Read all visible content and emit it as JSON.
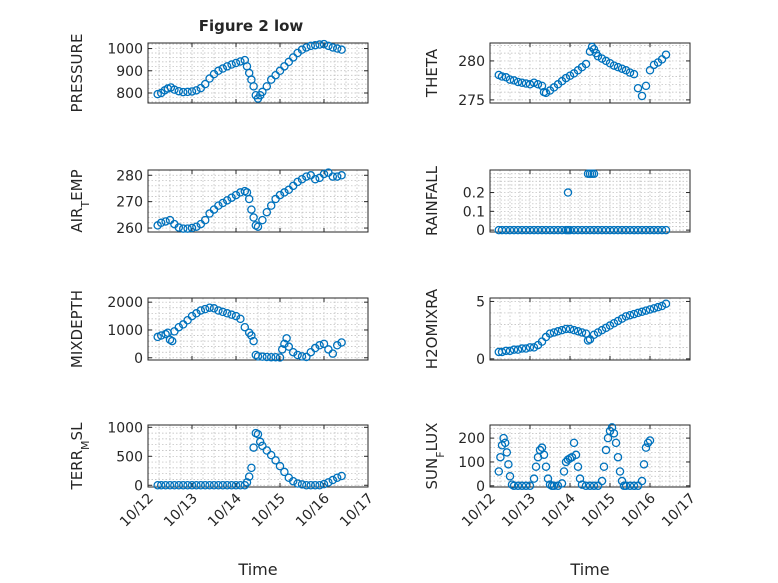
{
  "figure": {
    "title": "Figure 2 low"
  },
  "style": {
    "marker_color": "#0072BD",
    "axes_color": "#262626",
    "grid_color": "#b8b8b8"
  },
  "chart_data": [
    {
      "type": "scatter",
      "position": "row1-left",
      "title": "Figure 2 low",
      "ylabel": {
        "text": "PRESSURE"
      },
      "xlabel": "",
      "x_range": [
        12,
        17
      ],
      "x_ticks": [
        "10/12",
        "10/13",
        "10/14",
        "10/15",
        "10/16",
        "10/17"
      ],
      "show_x_ticks": false,
      "ylim": [
        755,
        1025
      ],
      "y_ticks": [
        800,
        900,
        1000
      ],
      "y_tick_labels": [
        "800",
        "900",
        "1000"
      ],
      "grid": true,
      "series": [
        {
          "x": [
            12.22,
            12.3,
            12.38,
            12.45,
            12.52,
            12.6,
            12.7,
            12.8,
            12.9,
            13.0,
            13.1,
            13.2,
            13.3,
            13.4,
            13.5,
            13.6,
            13.7,
            13.8,
            13.9,
            14.0,
            14.1,
            14.2,
            14.25,
            14.3,
            14.35,
            14.4,
            14.45,
            14.5,
            14.55,
            14.6,
            14.7,
            14.8,
            14.9,
            15.0,
            15.1,
            15.2,
            15.3,
            15.4,
            15.5,
            15.6,
            15.7,
            15.8,
            15.9,
            16.0,
            16.1,
            16.2,
            16.3,
            16.4
          ],
          "y": [
            795,
            800,
            812,
            820,
            825,
            815,
            808,
            804,
            805,
            807,
            812,
            822,
            840,
            865,
            885,
            900,
            910,
            920,
            928,
            935,
            942,
            948,
            920,
            890,
            860,
            830,
            790,
            775,
            790,
            805,
            830,
            860,
            880,
            900,
            920,
            940,
            960,
            980,
            995,
            1005,
            1012,
            1015,
            1018,
            1020,
            1012,
            1005,
            1000,
            995
          ]
        }
      ]
    },
    {
      "type": "scatter",
      "position": "row1-right",
      "ylabel": {
        "text": "THETA"
      },
      "xlabel": "",
      "x_range": [
        12,
        17
      ],
      "x_ticks": [
        "10/12",
        "10/13",
        "10/14",
        "10/15",
        "10/16",
        "10/17"
      ],
      "show_x_ticks": false,
      "ylim": [
        274.6,
        282.3
      ],
      "y_ticks": [
        275,
        280
      ],
      "y_tick_labels": [
        "275",
        "280"
      ],
      "grid": true,
      "series": [
        {
          "x": [
            12.22,
            12.3,
            12.4,
            12.5,
            12.6,
            12.7,
            12.8,
            12.9,
            13.0,
            13.1,
            13.2,
            13.3,
            13.35,
            13.4,
            13.5,
            13.6,
            13.7,
            13.8,
            13.9,
            14.0,
            14.1,
            14.2,
            14.3,
            14.4,
            14.5,
            14.55,
            14.6,
            14.65,
            14.7,
            14.8,
            14.9,
            15.0,
            15.1,
            15.2,
            15.3,
            15.4,
            15.5,
            15.6,
            15.7,
            15.8,
            15.9,
            16.0,
            16.1,
            16.2,
            16.3,
            16.4
          ],
          "y": [
            278.2,
            278.0,
            277.9,
            277.6,
            277.5,
            277.3,
            277.2,
            277.1,
            277.0,
            277.2,
            277.0,
            276.8,
            276.0,
            275.9,
            276.2,
            276.6,
            277.0,
            277.4,
            277.8,
            278.1,
            278.4,
            278.8,
            279.2,
            279.6,
            281.2,
            281.8,
            281.5,
            281.0,
            280.6,
            280.3,
            280.0,
            279.7,
            279.4,
            279.2,
            279.0,
            278.8,
            278.5,
            278.3,
            276.5,
            275.5,
            276.8,
            278.8,
            279.5,
            279.8,
            280.2,
            280.8
          ]
        }
      ]
    },
    {
      "type": "scatter",
      "position": "row2-left",
      "ylabel": {
        "text": "AIR",
        "sub": "T",
        "rest": "EMP"
      },
      "xlabel": "",
      "x_range": [
        12,
        17
      ],
      "x_ticks": [
        "10/12",
        "10/13",
        "10/14",
        "10/15",
        "10/16",
        "10/17"
      ],
      "show_x_ticks": false,
      "ylim": [
        258.5,
        282
      ],
      "y_ticks": [
        260,
        270,
        280
      ],
      "y_tick_labels": [
        "260",
        "270",
        "280"
      ],
      "grid": true,
      "series": [
        {
          "x": [
            12.22,
            12.3,
            12.4,
            12.5,
            12.6,
            12.7,
            12.8,
            12.9,
            13.0,
            13.1,
            13.2,
            13.3,
            13.4,
            13.5,
            13.6,
            13.7,
            13.8,
            13.9,
            14.0,
            14.1,
            14.2,
            14.25,
            14.3,
            14.35,
            14.4,
            14.45,
            14.5,
            14.6,
            14.7,
            14.8,
            14.9,
            15.0,
            15.1,
            15.2,
            15.3,
            15.4,
            15.5,
            15.6,
            15.7,
            15.8,
            15.9,
            16.0,
            16.1,
            16.2,
            16.3,
            16.4
          ],
          "y": [
            261,
            262,
            262.5,
            263,
            261.5,
            260.2,
            259.8,
            259.8,
            260,
            260.5,
            261.5,
            263,
            265.5,
            267,
            268.5,
            269.5,
            270.5,
            271.5,
            272.5,
            273.5,
            274,
            273.5,
            271,
            267,
            264,
            261,
            260.5,
            263,
            266,
            268.5,
            271,
            272.5,
            273.5,
            274.5,
            276,
            277.5,
            278.5,
            279.5,
            280,
            278.5,
            279,
            280.5,
            281,
            279.5,
            279.5,
            280
          ]
        }
      ]
    },
    {
      "type": "scatter",
      "position": "row2-right",
      "ylabel": {
        "text": "RAINFALL"
      },
      "xlabel": "",
      "x_range": [
        12,
        17
      ],
      "x_ticks": [
        "10/12",
        "10/13",
        "10/14",
        "10/15",
        "10/16",
        "10/17"
      ],
      "show_x_ticks": false,
      "ylim": [
        -0.01,
        0.32
      ],
      "y_ticks": [
        0,
        0.1,
        0.2
      ],
      "y_tick_labels": [
        "0",
        "0.1",
        "0.2"
      ],
      "grid": true,
      "series": [
        {
          "x": [
            12.22,
            12.3,
            12.4,
            12.5,
            12.6,
            12.7,
            12.8,
            12.9,
            13.0,
            13.1,
            13.2,
            13.3,
            13.4,
            13.5,
            13.6,
            13.7,
            13.8,
            13.9,
            13.95,
            14.0,
            14.1,
            14.2,
            14.3,
            14.4,
            14.5,
            14.6,
            14.7,
            14.8,
            14.9,
            15.0,
            15.1,
            15.2,
            15.3,
            15.4,
            15.5,
            15.6,
            15.7,
            15.8,
            15.9,
            16.0,
            16.1,
            16.2,
            16.3,
            16.4,
            14.45,
            14.5,
            14.55,
            14.6,
            13.95
          ],
          "y": [
            0,
            0,
            0,
            0,
            0,
            0,
            0,
            0,
            0,
            0,
            0,
            0,
            0,
            0,
            0,
            0,
            0,
            0,
            0,
            0,
            0,
            0,
            0,
            0,
            0,
            0,
            0,
            0,
            0,
            0,
            0,
            0,
            0,
            0,
            0,
            0,
            0,
            0,
            0,
            0,
            0,
            0,
            0,
            0,
            0.3,
            0.3,
            0.3,
            0.3,
            0.2
          ]
        }
      ]
    },
    {
      "type": "scatter",
      "position": "row3-left",
      "ylabel": {
        "text": "MIXDEPTH"
      },
      "xlabel": "",
      "x_range": [
        12,
        17
      ],
      "x_ticks": [
        "10/12",
        "10/13",
        "10/14",
        "10/15",
        "10/16",
        "10/17"
      ],
      "show_x_ticks": false,
      "ylim": [
        -80,
        2150
      ],
      "y_ticks": [
        0,
        1000,
        2000
      ],
      "y_tick_labels": [
        "0",
        "1000",
        "2000"
      ],
      "grid": true,
      "series": [
        {
          "x": [
            12.22,
            12.3,
            12.4,
            12.45,
            12.5,
            12.55,
            12.6,
            12.7,
            12.8,
            12.9,
            13.0,
            13.1,
            13.2,
            13.3,
            13.4,
            13.5,
            13.6,
            13.7,
            13.8,
            13.9,
            14.0,
            14.1,
            14.2,
            14.3,
            14.35,
            14.4,
            14.45,
            14.5,
            14.6,
            14.7,
            14.8,
            14.9,
            15.0,
            15.05,
            15.1,
            15.15,
            15.2,
            15.3,
            15.4,
            15.5,
            15.6,
            15.7,
            15.8,
            15.9,
            16.0,
            16.1,
            16.2,
            16.3,
            16.4
          ],
          "y": [
            750,
            800,
            850,
            900,
            650,
            600,
            950,
            1100,
            1200,
            1350,
            1500,
            1600,
            1700,
            1750,
            1800,
            1780,
            1700,
            1650,
            1600,
            1550,
            1500,
            1400,
            1100,
            900,
            800,
            600,
            100,
            50,
            40,
            30,
            20,
            20,
            10,
            300,
            500,
            700,
            400,
            200,
            100,
            50,
            30,
            200,
            350,
            450,
            500,
            300,
            150,
            450,
            550
          ]
        }
      ]
    },
    {
      "type": "scatter",
      "position": "row3-right",
      "ylabel": {
        "text": "H2OMIXRA"
      },
      "xlabel": "",
      "x_range": [
        12,
        17
      ],
      "x_ticks": [
        "10/12",
        "10/13",
        "10/14",
        "10/15",
        "10/16",
        "10/17"
      ],
      "show_x_ticks": false,
      "ylim": [
        -0.1,
        5.3
      ],
      "y_ticks": [
        0,
        5
      ],
      "y_tick_labels": [
        "0",
        "5"
      ],
      "grid": true,
      "series": [
        {
          "x": [
            12.22,
            12.3,
            12.4,
            12.5,
            12.6,
            12.7,
            12.8,
            12.9,
            13.0,
            13.1,
            13.2,
            13.3,
            13.4,
            13.5,
            13.6,
            13.7,
            13.8,
            13.9,
            14.0,
            14.1,
            14.2,
            14.3,
            14.4,
            14.45,
            14.5,
            14.6,
            14.7,
            14.8,
            14.9,
            15.0,
            15.1,
            15.2,
            15.3,
            15.4,
            15.5,
            15.6,
            15.7,
            15.8,
            15.9,
            16.0,
            16.1,
            16.2,
            16.3,
            16.4
          ],
          "y": [
            0.6,
            0.6,
            0.7,
            0.7,
            0.8,
            0.8,
            0.9,
            0.9,
            1.0,
            1.0,
            1.2,
            1.5,
            1.9,
            2.2,
            2.3,
            2.4,
            2.5,
            2.6,
            2.6,
            2.5,
            2.4,
            2.3,
            2.2,
            1.6,
            1.7,
            2.1,
            2.3,
            2.5,
            2.7,
            2.9,
            3.1,
            3.3,
            3.5,
            3.7,
            3.8,
            3.9,
            4.0,
            4.1,
            4.2,
            4.3,
            4.4,
            4.5,
            4.6,
            4.8
          ]
        }
      ]
    },
    {
      "type": "scatter",
      "position": "row4-left",
      "ylabel": {
        "text": "TERR",
        "sub": "M",
        "rest": "SL"
      },
      "xlabel": "Time",
      "x_range": [
        12,
        17
      ],
      "x_ticks": [
        "10/12",
        "10/13",
        "10/14",
        "10/15",
        "10/16",
        "10/17"
      ],
      "show_x_ticks": true,
      "ylim": [
        -30,
        1040
      ],
      "y_ticks": [
        0,
        500,
        1000
      ],
      "y_tick_labels": [
        "0",
        "500",
        "1000"
      ],
      "grid": true,
      "series": [
        {
          "x": [
            12.22,
            12.3,
            12.4,
            12.5,
            12.6,
            12.7,
            12.8,
            12.9,
            13.0,
            13.1,
            13.2,
            13.3,
            13.4,
            13.5,
            13.6,
            13.7,
            13.8,
            13.9,
            14.0,
            14.1,
            14.2,
            14.25,
            14.3,
            14.35,
            14.4,
            14.45,
            14.5,
            14.55,
            14.6,
            14.7,
            14.8,
            14.9,
            15.0,
            15.1,
            15.2,
            15.3,
            15.4,
            15.5,
            15.6,
            15.7,
            15.8,
            15.9,
            16.0,
            16.1,
            16.2,
            16.3,
            16.4
          ],
          "y": [
            0,
            0,
            0,
            0,
            0,
            0,
            0,
            0,
            0,
            0,
            0,
            0,
            0,
            0,
            0,
            0,
            0,
            0,
            0,
            0,
            0,
            50,
            150,
            300,
            650,
            900,
            880,
            750,
            680,
            600,
            520,
            430,
            330,
            230,
            130,
            70,
            30,
            15,
            0,
            0,
            0,
            0,
            20,
            50,
            90,
            130,
            160
          ]
        }
      ]
    },
    {
      "type": "scatter",
      "position": "row4-right",
      "ylabel": {
        "text": "SUN",
        "sub": "F",
        "rest": "LUX"
      },
      "xlabel": "Time",
      "x_range": [
        12,
        17
      ],
      "x_ticks": [
        "10/12",
        "10/13",
        "10/14",
        "10/15",
        "10/16",
        "10/17"
      ],
      "show_x_ticks": true,
      "ylim": [
        -5,
        255
      ],
      "y_ticks": [
        0,
        100,
        200
      ],
      "y_tick_labels": [
        "0",
        "100",
        "200"
      ],
      "grid": true,
      "series": [
        {
          "x": [
            12.22,
            12.26,
            12.3,
            12.34,
            12.38,
            12.42,
            12.46,
            12.5,
            12.55,
            12.6,
            12.7,
            12.8,
            12.9,
            13.0,
            13.1,
            13.15,
            13.2,
            13.25,
            13.3,
            13.35,
            13.4,
            13.45,
            13.5,
            13.55,
            13.6,
            13.7,
            13.8,
            13.85,
            13.9,
            13.95,
            14.0,
            14.05,
            14.1,
            14.15,
            14.2,
            14.25,
            14.3,
            14.4,
            14.5,
            14.6,
            14.7,
            14.8,
            14.85,
            14.9,
            14.95,
            15.0,
            15.05,
            15.1,
            15.15,
            15.2,
            15.25,
            15.3,
            15.35,
            15.4,
            15.5,
            15.6,
            15.7,
            15.8,
            15.85,
            15.9,
            15.95,
            16.0
          ],
          "y": [
            60,
            120,
            170,
            200,
            180,
            140,
            90,
            40,
            5,
            0,
            0,
            0,
            0,
            0,
            30,
            80,
            120,
            150,
            160,
            130,
            80,
            30,
            5,
            0,
            0,
            0,
            10,
            60,
            100,
            110,
            115,
            120,
            180,
            130,
            80,
            30,
            5,
            0,
            0,
            0,
            0,
            20,
            80,
            150,
            200,
            230,
            245,
            220,
            180,
            120,
            60,
            20,
            0,
            0,
            0,
            0,
            0,
            20,
            90,
            160,
            180,
            190
          ]
        }
      ]
    }
  ]
}
